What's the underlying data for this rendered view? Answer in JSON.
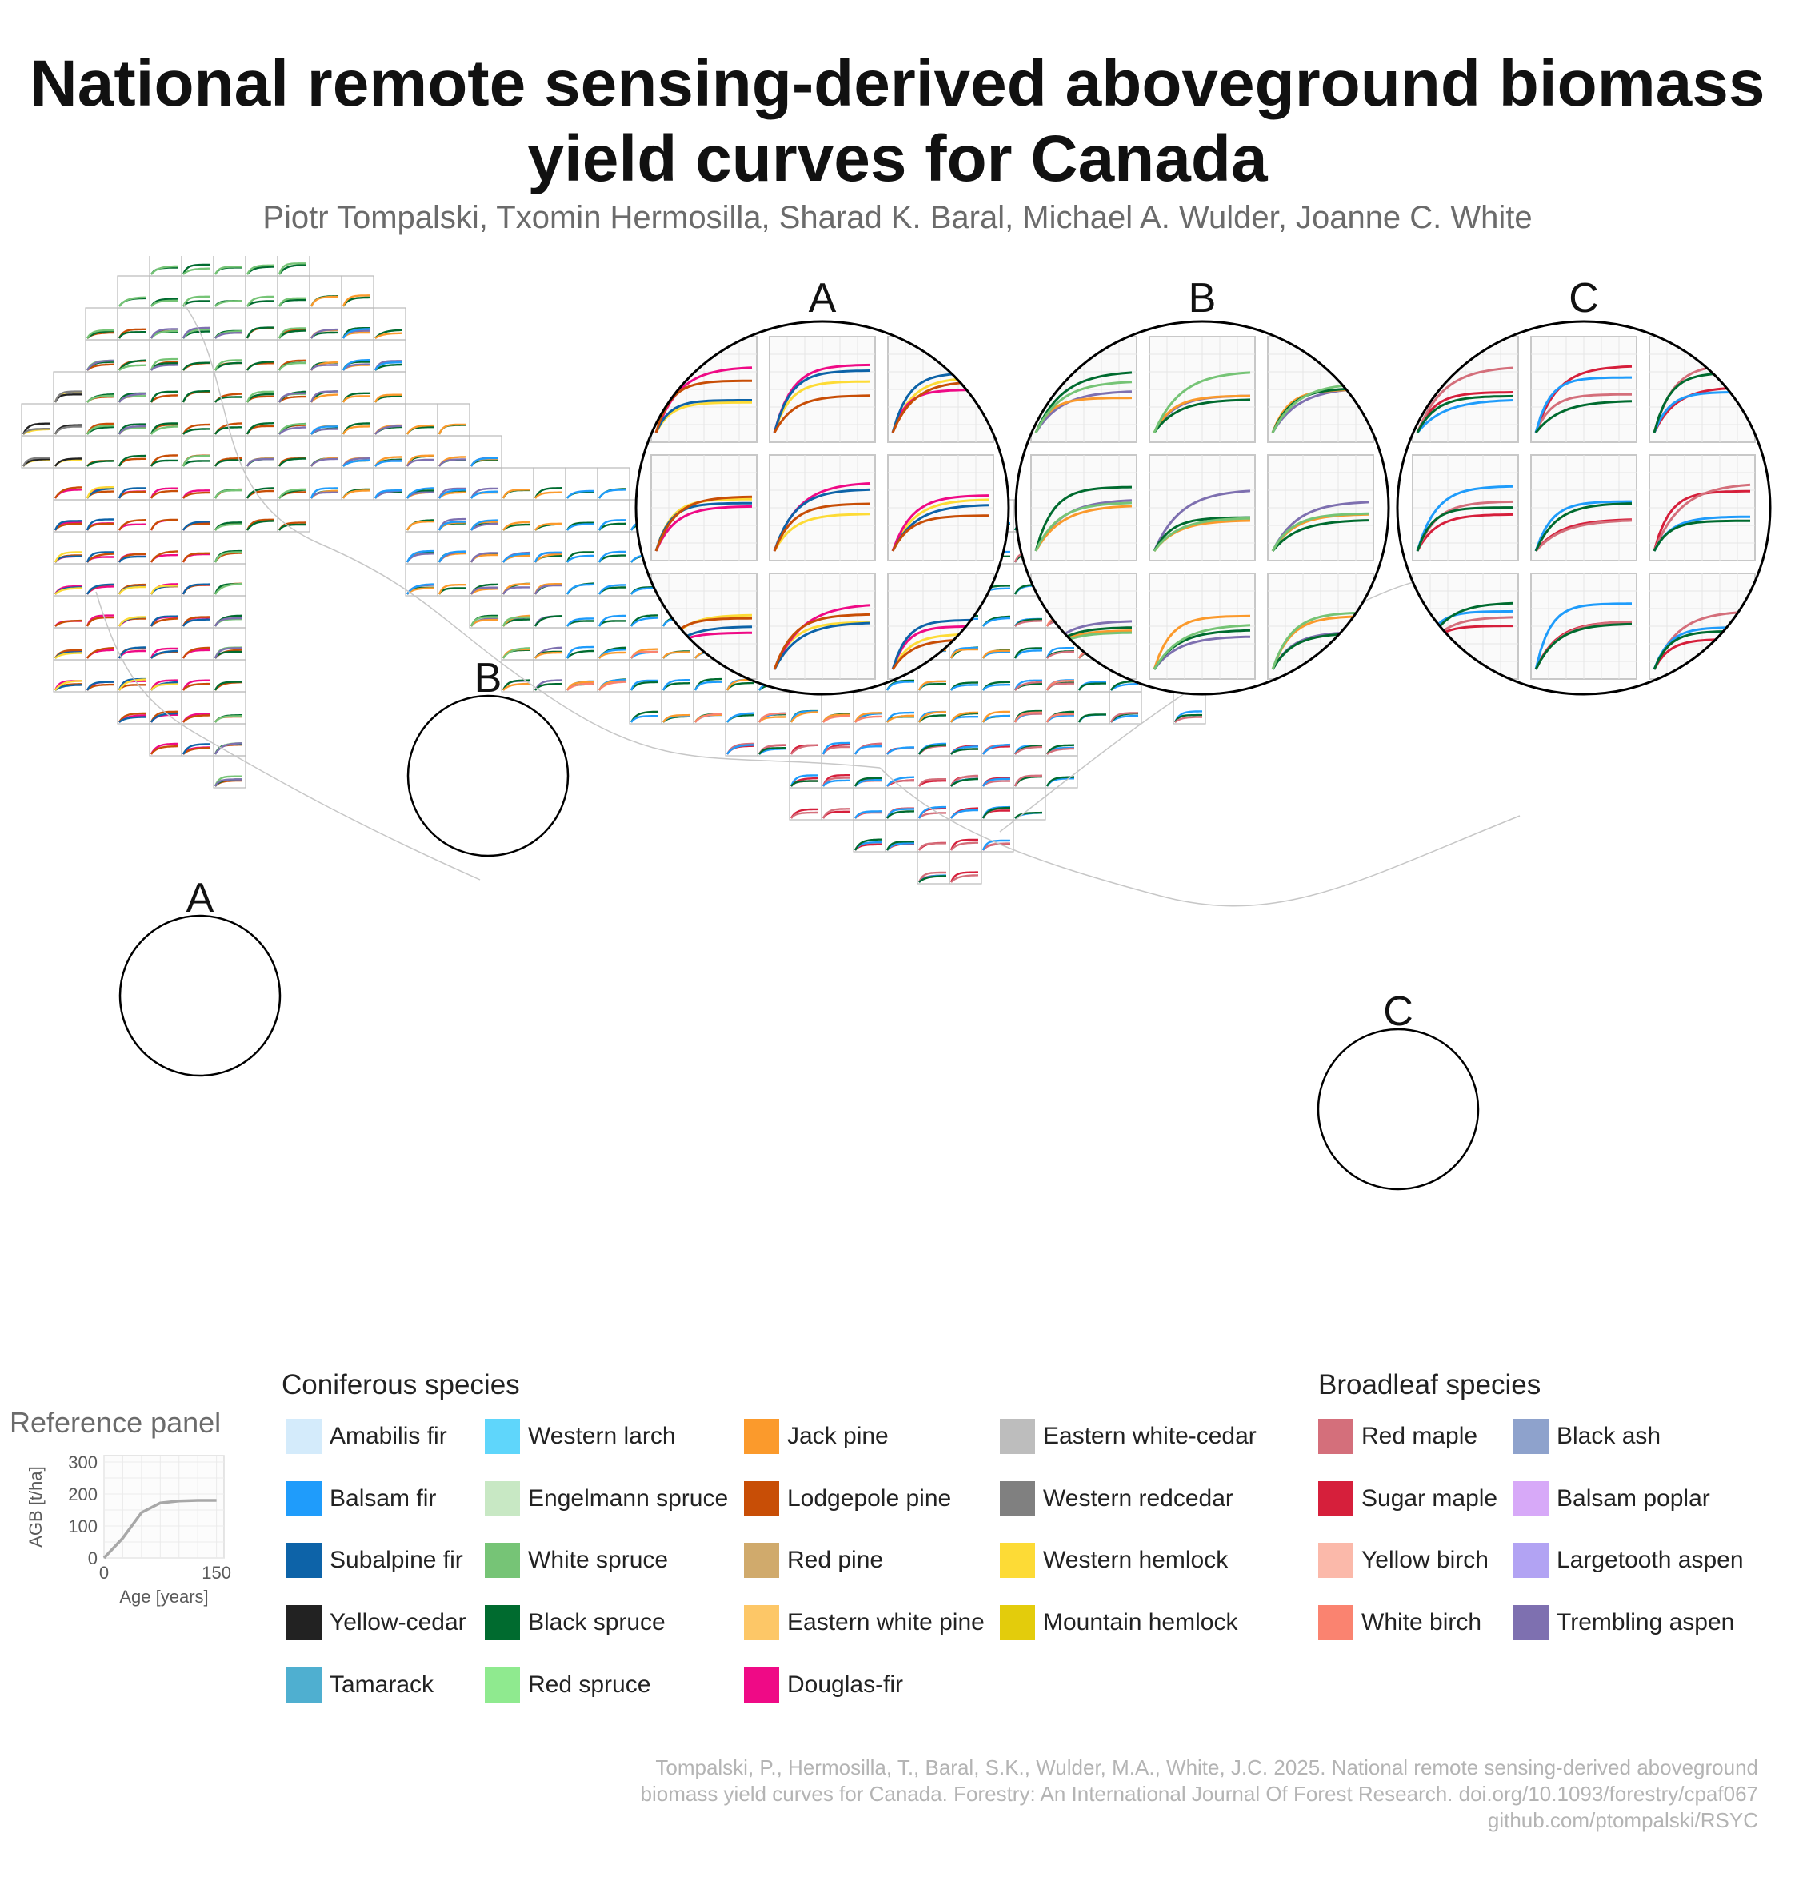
{
  "title": "National remote sensing-derived aboveground biomass yield curves for Canada",
  "authors": "Piotr Tompalski, Txomin Hermosilla, Sharad K. Baral, Michael A. Wulder, Joanne C. White",
  "chart_data": {
    "type": "line",
    "description_scope": "small-multiple grid of biomass yield curves per map cell",
    "callouts": [
      "A",
      "B",
      "C"
    ],
    "reference_panel": {
      "title": "Reference panel",
      "xlabel": "Age [years]",
      "ylabel": "AGB [t/ha]",
      "x_ticks": [
        0,
        150
      ],
      "y_ticks": [
        0,
        100,
        200,
        300
      ],
      "xlim": [
        0,
        160
      ],
      "ylim": [
        0,
        320
      ],
      "curve": {
        "asymptote": 180,
        "x": [
          0,
          25,
          50,
          75,
          100,
          125,
          150
        ],
        "y": [
          0,
          62,
          142,
          172,
          178,
          180,
          180
        ]
      }
    },
    "legend": {
      "coniferous_title": "Coniferous species",
      "broadleaf_title": "Broadleaf species",
      "coniferous": [
        {
          "name": "Amabilis fir",
          "color": "#d4ebfb"
        },
        {
          "name": "Balsam fir",
          "color": "#1f9cfb"
        },
        {
          "name": "Subalpine fir",
          "color": "#0d63a8"
        },
        {
          "name": "Yellow-cedar",
          "color": "#222222"
        },
        {
          "name": "Tamarack",
          "color": "#4fafd0"
        },
        {
          "name": "Western larch",
          "color": "#5fd6fb"
        },
        {
          "name": "Engelmann spruce",
          "color": "#c8e8c4"
        },
        {
          "name": "White spruce",
          "color": "#76c476"
        },
        {
          "name": "Black spruce",
          "color": "#006b2f"
        },
        {
          "name": "Red spruce",
          "color": "#8fea8f"
        },
        {
          "name": "Jack pine",
          "color": "#fb9a2c"
        },
        {
          "name": "Lodgepole pine",
          "color": "#c84e06"
        },
        {
          "name": "Red pine",
          "color": "#d0aa6c"
        },
        {
          "name": "Eastern white pine",
          "color": "#fdc767"
        },
        {
          "name": "Douglas-fir",
          "color": "#ef0a86"
        },
        {
          "name": "Eastern white-cedar",
          "color": "#bdbdbd"
        },
        {
          "name": "Western redcedar",
          "color": "#808080"
        },
        {
          "name": "Western hemlock",
          "color": "#fddb36"
        },
        {
          "name": "Mountain hemlock",
          "color": "#e3cc0c"
        }
      ],
      "broadleaf": [
        {
          "name": "Red maple",
          "color": "#d46f7b"
        },
        {
          "name": "Sugar maple",
          "color": "#d61f3b"
        },
        {
          "name": "Yellow birch",
          "color": "#fbb9aa"
        },
        {
          "name": "White birch",
          "color": "#fa8370"
        },
        {
          "name": "Black ash",
          "color": "#8ea2cc"
        },
        {
          "name": "Balsam poplar",
          "color": "#d7a9f8"
        },
        {
          "name": "Largetooth aspen",
          "color": "#b2a3f3"
        },
        {
          "name": "Trembling aspen",
          "color": "#7e70b0"
        }
      ]
    }
  },
  "citation": {
    "line1": "Tompalski, P., Hermosilla, T., Baral, S.K., Wulder, M.A., White, J.C. 2025. National remote sensing-derived aboveground",
    "line2": "biomass yield curves for Canada. Forestry: An International Journal Of Forest Research. doi.org/10.1093/forestry/cpaf067",
    "line3": "github.com/ptompalski/RSYC"
  }
}
